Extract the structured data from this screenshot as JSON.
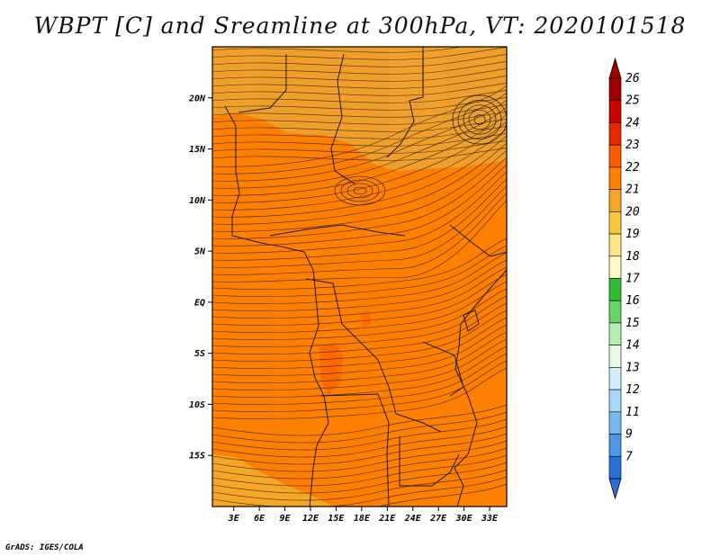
{
  "title": "WBPT [C] and Sreamline at 300hPa, VT: 2020101518",
  "footer": "GrADS: IGES/COLA",
  "map": {
    "lat_labels": [
      "20N",
      "15N",
      "10N",
      "5N",
      "EQ",
      "5S",
      "10S",
      "15S"
    ],
    "lat_values": [
      20,
      15,
      10,
      5,
      0,
      -5,
      -10,
      -15
    ],
    "lon_labels": [
      "3E",
      "6E",
      "9E",
      "12E",
      "15E",
      "18E",
      "21E",
      "24E",
      "27E",
      "30E",
      "33E"
    ],
    "lon_values": [
      3,
      6,
      9,
      12,
      15,
      18,
      21,
      24,
      27,
      30,
      33
    ],
    "lon_range": [
      0.5,
      35
    ],
    "lat_range": [
      -20,
      25
    ],
    "fields": {
      "background_color": "#ff7f00",
      "north_band_color": "#f0a02a",
      "warm_patch_color": "#ff6a00",
      "southwest_corner_color": "#f5a623"
    }
  },
  "colorbar": {
    "labels": [
      "26",
      "25",
      "24",
      "23",
      "22",
      "21",
      "20",
      "19",
      "18",
      "17",
      "16",
      "15",
      "14",
      "13",
      "12",
      "11",
      "9",
      "7"
    ],
    "colors": [
      "#a00000",
      "#c80000",
      "#e62800",
      "#ff5a00",
      "#ff7f00",
      "#f5a623",
      "#f7c83c",
      "#fbe68c",
      "#fffac8",
      "#33bb33",
      "#66d466",
      "#b4f0b4",
      "#e6fae6",
      "#d2eefc",
      "#a8d8f8",
      "#78b8f0",
      "#4c98e6",
      "#2a6fd8"
    ]
  }
}
